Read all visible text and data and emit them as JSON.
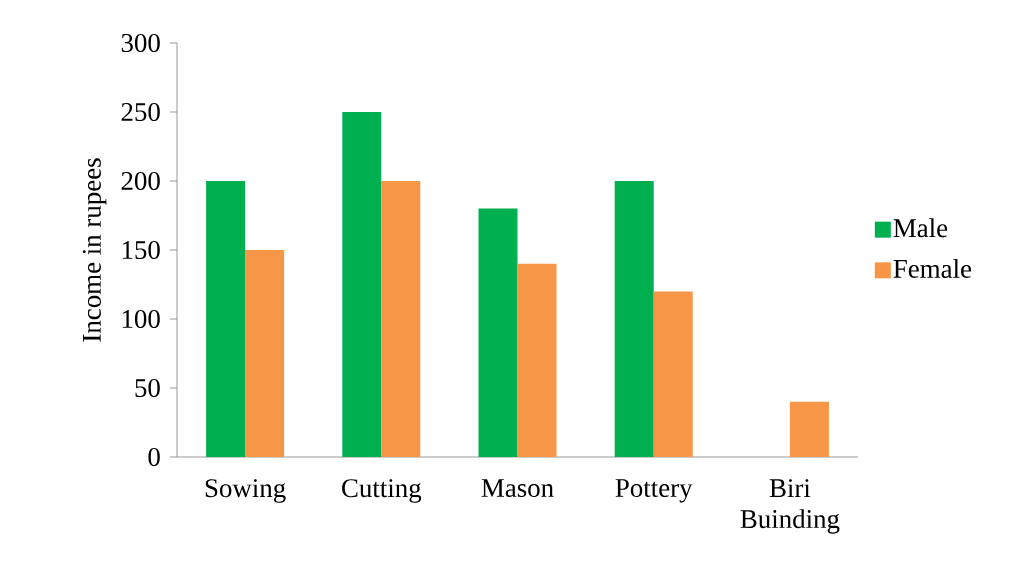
{
  "chart_data": {
    "type": "bar",
    "ylabel": "Income in rupees",
    "categories": [
      "Sowing",
      "Cutting",
      "Mason",
      "Pottery",
      "Biri Buinding"
    ],
    "series": [
      {
        "name": "Male",
        "color": "#00b050",
        "values": [
          200,
          250,
          180,
          200,
          null
        ]
      },
      {
        "name": "Female",
        "color": "#f79646",
        "values": [
          150,
          200,
          140,
          120,
          40
        ]
      }
    ],
    "ylim": [
      0,
      300
    ],
    "yticks": [
      0,
      50,
      100,
      150,
      200,
      250,
      300
    ],
    "grid": false,
    "legend": "right"
  }
}
